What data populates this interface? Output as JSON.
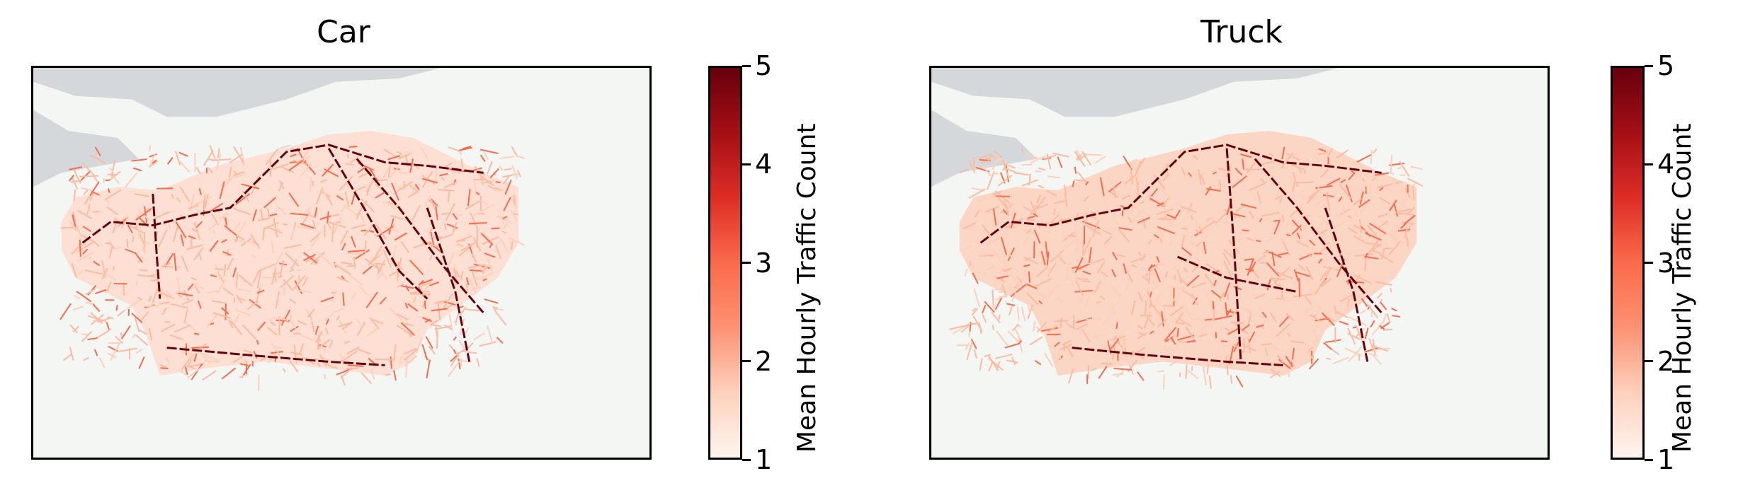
{
  "chart_data": [
    {
      "type": "heatmap",
      "title": "Car",
      "colorbar": {
        "label": "Mean Hourly Traffic Count",
        "range": [
          1,
          5
        ],
        "ticks": [
          "1",
          "2",
          "3",
          "4",
          "5"
        ],
        "colormap": "Reds"
      },
      "grid": false
    },
    {
      "type": "heatmap",
      "title": "Truck",
      "colorbar": {
        "label": "Mean Hourly Traffic Count",
        "range": [
          1,
          5
        ],
        "ticks": [
          "1",
          "2",
          "3",
          "4",
          "5"
        ],
        "colormap": "Reds"
      },
      "grid": false
    }
  ],
  "colors": {
    "river": "#d4d8db",
    "land": "#f4f6f3",
    "road_light": "#fcbba1",
    "road_mid": "#fb6a4a",
    "road_dark": "#67000d"
  }
}
